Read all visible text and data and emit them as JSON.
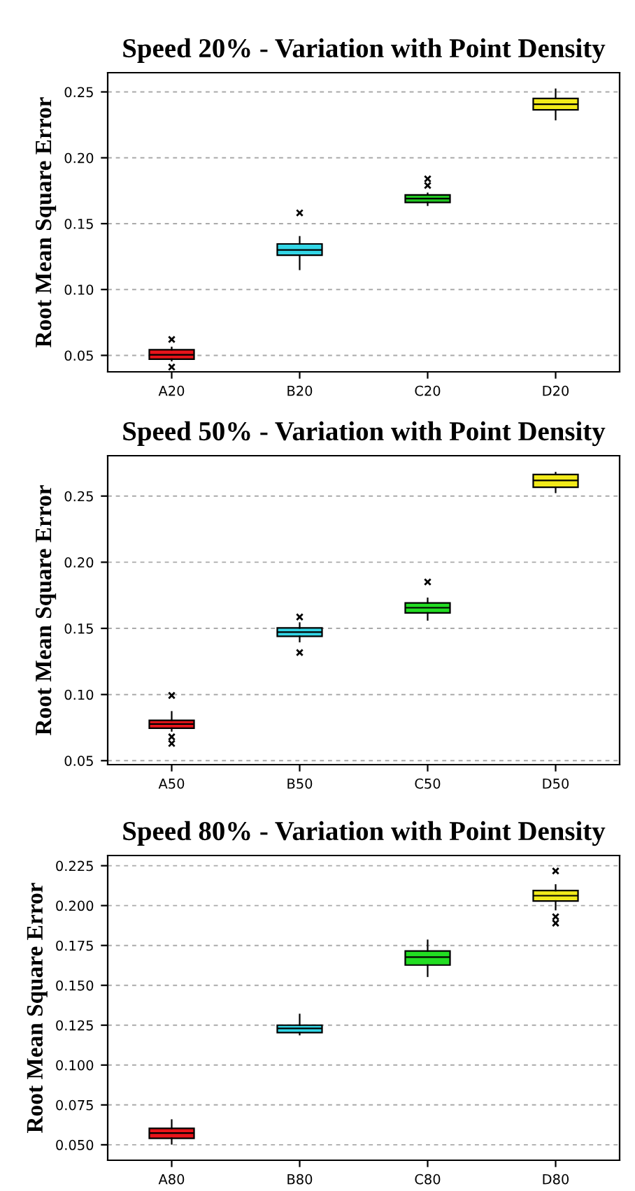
{
  "chart_data": [
    {
      "type": "box",
      "title": "Speed 20% - Variation with Point Density",
      "ylabel": "Root Mean Square Error",
      "categories": [
        "A20",
        "B20",
        "C20",
        "D20"
      ],
      "colors": [
        "#e8141a",
        "#33d6e6",
        "#22c722",
        "#f2ea1a"
      ],
      "ylim": [
        0.0375,
        0.2646
      ],
      "yticks": [
        {
          "value": 0.05,
          "label": "0.05"
        },
        {
          "value": 0.1,
          "label": "0.10"
        },
        {
          "value": 0.15,
          "label": "0.15"
        },
        {
          "value": 0.2,
          "label": "0.20"
        },
        {
          "value": 0.25,
          "label": "0.25"
        }
      ],
      "grid": "y",
      "marker": "cross",
      "boxes": [
        {
          "low": 0.046,
          "q1": 0.0471,
          "median": 0.0504,
          "q3": 0.0543,
          "high": 0.056,
          "outliers": [
            0.0621,
            0.0411
          ]
        },
        {
          "low": 0.1153,
          "q1": 0.126,
          "median": 0.13,
          "q3": 0.1346,
          "high": 0.14,
          "outliers": [
            0.1582
          ]
        },
        {
          "low": 0.164,
          "q1": 0.1661,
          "median": 0.169,
          "q3": 0.1718,
          "high": 0.173,
          "outliers": [
            0.184,
            0.179
          ]
        },
        {
          "low": 0.229,
          "q1": 0.2364,
          "median": 0.2407,
          "q3": 0.245,
          "high": 0.252
        }
      ]
    },
    {
      "type": "box",
      "title": "Speed 50% - Variation with Point Density",
      "ylabel": "Root Mean Square Error",
      "categories": [
        "A50",
        "B50",
        "C50",
        "D50"
      ],
      "colors": [
        "#e8141a",
        "#33d6e6",
        "#22dd22",
        "#f2ea1a"
      ],
      "ylim": [
        0.047,
        0.2805
      ],
      "yticks": [
        {
          "value": 0.05,
          "label": "0.05"
        },
        {
          "value": 0.1,
          "label": "0.10"
        },
        {
          "value": 0.15,
          "label": "0.15"
        },
        {
          "value": 0.2,
          "label": "0.20"
        },
        {
          "value": 0.25,
          "label": "0.25"
        }
      ],
      "grid": "y",
      "marker": "cross",
      "boxes": [
        {
          "low": 0.0725,
          "q1": 0.0745,
          "median": 0.0777,
          "q3": 0.0805,
          "high": 0.0869,
          "outliers": [
            0.0993,
            0.068,
            0.063
          ]
        },
        {
          "low": 0.14,
          "q1": 0.144,
          "median": 0.1472,
          "q3": 0.1503,
          "high": 0.154,
          "outliers": [
            0.1586,
            0.1317
          ]
        },
        {
          "low": 0.1564,
          "q1": 0.1617,
          "median": 0.1656,
          "q3": 0.1692,
          "high": 0.1727,
          "outliers": [
            0.1851
          ]
        },
        {
          "low": 0.2528,
          "q1": 0.2567,
          "median": 0.2618,
          "q3": 0.2663,
          "high": 0.2677
        }
      ]
    },
    {
      "type": "box",
      "title": "Speed 80% - Variation with Point Density",
      "ylabel": "Root Mean Square Error",
      "categories": [
        "A80",
        "B80",
        "C80",
        "D80"
      ],
      "colors": [
        "#e8141a",
        "#33d6e6",
        "#22dd22",
        "#f2ea1a"
      ],
      "ylim": [
        0.0403,
        0.2314
      ],
      "yticks": [
        {
          "value": 0.05,
          "label": "0.050"
        },
        {
          "value": 0.075,
          "label": "0.075"
        },
        {
          "value": 0.1,
          "label": "0.100"
        },
        {
          "value": 0.125,
          "label": "0.125"
        },
        {
          "value": 0.15,
          "label": "0.150"
        },
        {
          "value": 0.175,
          "label": "0.175"
        },
        {
          "value": 0.2,
          "label": "0.200"
        },
        {
          "value": 0.225,
          "label": "0.225"
        }
      ],
      "grid": "y",
      "marker": "cross",
      "boxes": [
        {
          "low": 0.0506,
          "q1": 0.0541,
          "median": 0.0573,
          "q3": 0.0603,
          "high": 0.0655
        },
        {
          "low": 0.1191,
          "q1": 0.1203,
          "median": 0.123,
          "q3": 0.125,
          "high": 0.1317
        },
        {
          "low": 0.1557,
          "q1": 0.1627,
          "median": 0.1677,
          "q3": 0.1715,
          "high": 0.1782
        },
        {
          "low": 0.1975,
          "q1": 0.2029,
          "median": 0.2062,
          "q3": 0.2094,
          "high": 0.2129,
          "outliers": [
            0.2217,
            0.193,
            0.189
          ]
        }
      ]
    }
  ]
}
